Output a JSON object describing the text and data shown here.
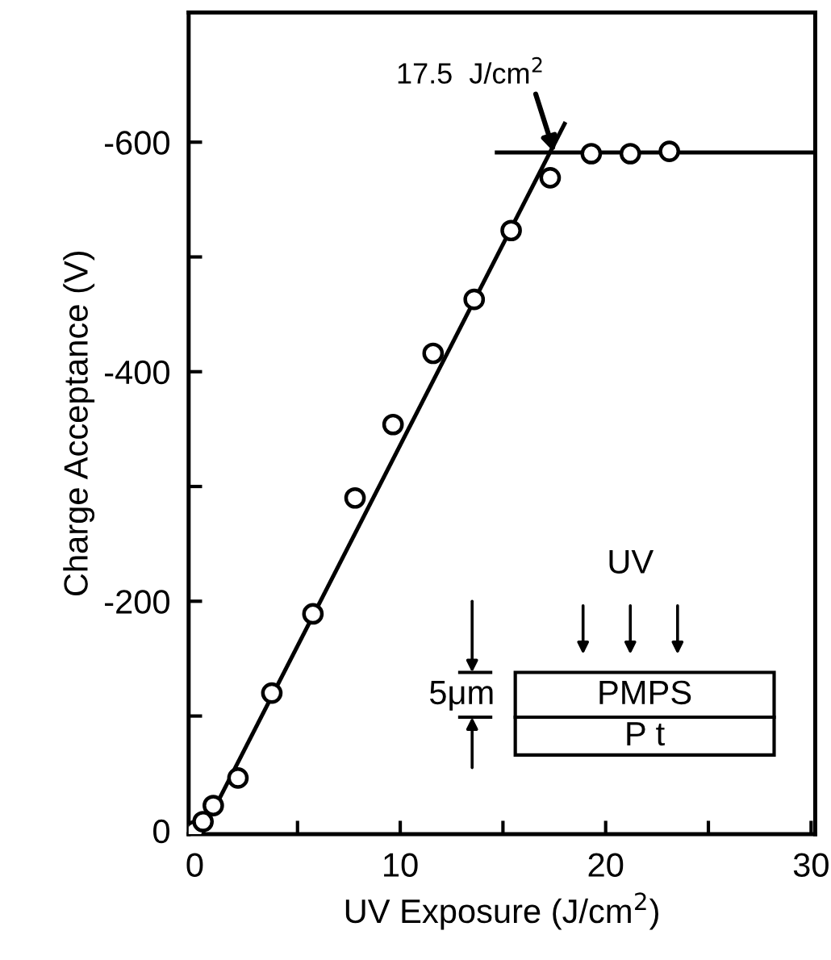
{
  "chart_data": {
    "type": "scatter",
    "xlabel": "UV Exposure (J/cm$^{2}$)",
    "ylabel": "Charge Acceptance (V)",
    "series": [
      {
        "color": "#000000",
        "marker": "circle",
        "x": [
          0,
          0.4,
          0.9,
          2.1,
          3.75,
          5.75,
          7.8,
          9.65,
          11.6,
          13.6,
          15.4,
          17.3,
          19.3,
          21.2,
          23.1
        ],
        "values": [
          0,
          -8,
          -22,
          -46,
          -120,
          -189,
          -290,
          -354,
          -416,
          -463,
          -523,
          -569,
          -590,
          -590,
          -592
        ]
      },
      {
        "type": "line",
        "color": "#000000",
        "line_style": "solid",
        "x": [
          1.0,
          18.0
        ],
        "values": [
          -21,
          -616
        ]
      },
      {
        "type": "line",
        "color": "#000000",
        "line_style": "solid",
        "x": [
          14.7,
          30.2
        ],
        "values": [
          -591,
          -591
        ]
      }
    ],
    "xlim": [
      -0.3,
      30.2
    ],
    "ylim": [
      3,
      -713
    ],
    "xticks": [
      0,
      {
        "value": 5,
        "label": null
      },
      10,
      {
        "value": 15,
        "label": null
      },
      20,
      {
        "value": 25,
        "label": null
      },
      30
    ],
    "yticks": [
      0,
      {
        "value": -100,
        "label": null
      },
      -200,
      {
        "value": -300,
        "label": null
      },
      -400,
      {
        "value": -500,
        "label": null
      },
      -600
    ],
    "grid": false,
    "legend": false,
    "annotations": [
      {
        "text": "17.5  J/cm$^{2}$",
        "x": 17.5,
        "y": -591
      },
      "UV",
      "5μm",
      "PMPS",
      "P t"
    ]
  }
}
